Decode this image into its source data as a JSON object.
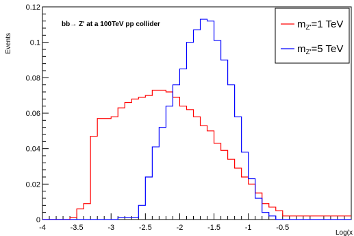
{
  "chart_data": {
    "type": "histogram",
    "annotation": "bb→ Z' at a 100TeV pp collider",
    "ylabel": "Events",
    "xlabel": "Log(x",
    "xlim": [
      -4,
      0.5
    ],
    "ylim": [
      0,
      0.12
    ],
    "grid": false,
    "legend_position": "top-right",
    "bin_width": 0.1,
    "bin_start": -4.0,
    "x_ticks": [
      -4,
      -3.5,
      -3,
      -2.5,
      -2,
      -1.5,
      -1,
      -0.5
    ],
    "x_tick_labels": [
      "-4",
      "-3.5",
      "-3",
      "-2.5",
      "-2",
      "-1.5",
      "-1",
      "-0.5"
    ],
    "y_ticks": [
      0,
      0.02,
      0.04,
      0.06,
      0.08,
      0.1,
      0.12
    ],
    "y_tick_labels": [
      "0",
      "0.02",
      "0.04",
      "0.06",
      "0.08",
      "0.1",
      "0.12"
    ],
    "series": [
      {
        "name": "m_Z'=1 TeV",
        "legend_main": "m",
        "legend_sub": "Z'",
        "legend_rest": "=1 TeV",
        "color": "#ff0000",
        "values": [
          0,
          0,
          0,
          0,
          0.001,
          0.006,
          0.009,
          0.047,
          0.057,
          0.057,
          0.058,
          0.063,
          0.066,
          0.068,
          0.069,
          0.07,
          0.073,
          0.073,
          0.072,
          0.069,
          0.064,
          0.062,
          0.058,
          0.053,
          0.05,
          0.043,
          0.039,
          0.034,
          0.029,
          0.024,
          0.02,
          0.015,
          0.009,
          0.007,
          0.005,
          0.002,
          0.002,
          0.002,
          0.002,
          0.002,
          0.002,
          0.002,
          0.002,
          0.002,
          0.002
        ]
      },
      {
        "name": "m_Z'=5 TeV",
        "legend_main": "m",
        "legend_sub": "Z'",
        "legend_rest": "=5 TeV",
        "color": "#0000ff",
        "values": [
          0,
          0,
          0,
          0,
          0,
          0,
          0,
          0,
          0,
          0,
          0,
          0.001,
          0.001,
          0.001,
          0.008,
          0.024,
          0.041,
          0.052,
          0.064,
          0.076,
          0.085,
          0.1,
          0.107,
          0.113,
          0.112,
          0.101,
          0.09,
          0.076,
          0.058,
          0.038,
          0.023,
          0.012,
          0.004,
          0.002,
          0,
          0,
          0,
          0,
          0,
          0,
          0,
          0,
          0,
          0,
          0
        ]
      }
    ]
  }
}
